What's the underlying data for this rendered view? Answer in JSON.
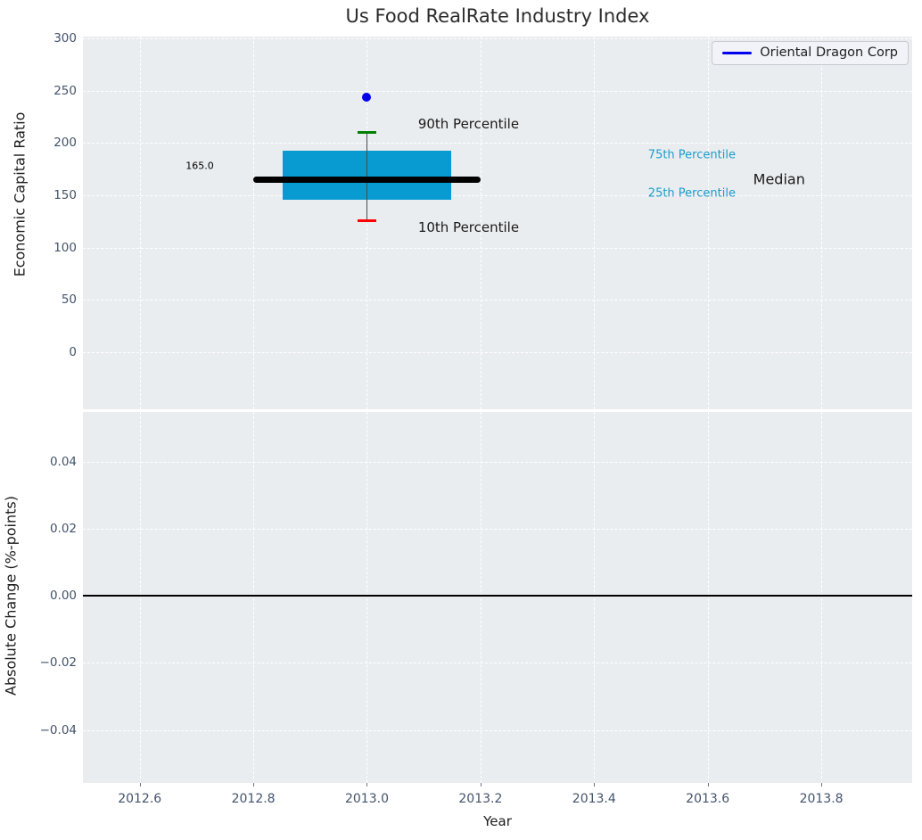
{
  "figure": {
    "title": "Us Food RealRate Industry Index",
    "legend": {
      "label": "Oriental Dragon Corp",
      "line_color": "#0000ee"
    }
  },
  "chart_data": {
    "type": "boxplot",
    "title": "Us Food RealRate Industry Index",
    "xlabel": "Year",
    "xlim": [
      2012.5,
      2013.96
    ],
    "x_ticks": [
      2012.6,
      2012.8,
      2013.0,
      2013.2,
      2013.4,
      2013.6,
      2013.8
    ],
    "x_tick_labels": [
      "2012.6",
      "2012.8",
      "2013.0",
      "2013.2",
      "2013.4",
      "2013.6",
      "2013.8"
    ],
    "grid": "white dashed gridlines on light gray background",
    "legend_position": "upper right",
    "panels": [
      {
        "id": "top",
        "ylabel": "Economic Capital Ratio",
        "ylim": [
          -55,
          302
        ],
        "y_ticks": [
          300,
          250,
          200,
          150,
          100,
          50,
          0
        ],
        "y_tick_labels": [
          "300",
          "250",
          "200",
          "150",
          "100",
          "50",
          "0"
        ],
        "boxplot": {
          "x_center": 2013.0,
          "box_half_width": 0.148,
          "median_half_width": 0.2,
          "cap_half_width": 0.017,
          "p10": 126,
          "p25": 146,
          "median": 165,
          "p75": 193,
          "p90": 210,
          "median_value_label": "165.0",
          "box_color": "#089bd1",
          "median_color": "#000000",
          "whisker_color": "#4a4a4a",
          "p90_cap_color": "#008000",
          "p10_cap_color": "#ff0000"
        },
        "company_point": {
          "name": "Oriental Dragon Corp",
          "x": 2013.0,
          "y": 244,
          "color": "#0000ee"
        },
        "annotations": [
          {
            "text": "90th Percentile",
            "x": 2013.09,
            "y": 218,
            "color": "#1a1a1a",
            "size": 15
          },
          {
            "text": "10th Percentile",
            "x": 2013.09,
            "y": 119,
            "color": "#1a1a1a",
            "size": 15
          },
          {
            "text": "75th Percentile",
            "x": 2013.495,
            "y": 188,
            "color": "#1b9cc9",
            "size": 13
          },
          {
            "text": "25th Percentile",
            "x": 2013.495,
            "y": 152,
            "color": "#1b9cc9",
            "size": 13
          },
          {
            "text": "Median",
            "x": 2013.68,
            "y": 165,
            "color": "#1a1a1a",
            "size": 16
          },
          {
            "text": "165.0",
            "x": 2012.681,
            "y": 178,
            "color": "#000000",
            "size": 11
          }
        ]
      },
      {
        "id": "bottom",
        "ylabel": "Absolute Change (%-points)",
        "ylim": [
          -0.0558,
          0.0548
        ],
        "y_ticks": [
          0.04,
          0.02,
          0,
          -0.02,
          -0.04
        ],
        "y_tick_labels": [
          "0.04",
          "0.02",
          "0.00",
          "−0.02",
          "−0.04"
        ],
        "zero_line": {
          "y": 0,
          "color": "#000000"
        }
      }
    ]
  }
}
